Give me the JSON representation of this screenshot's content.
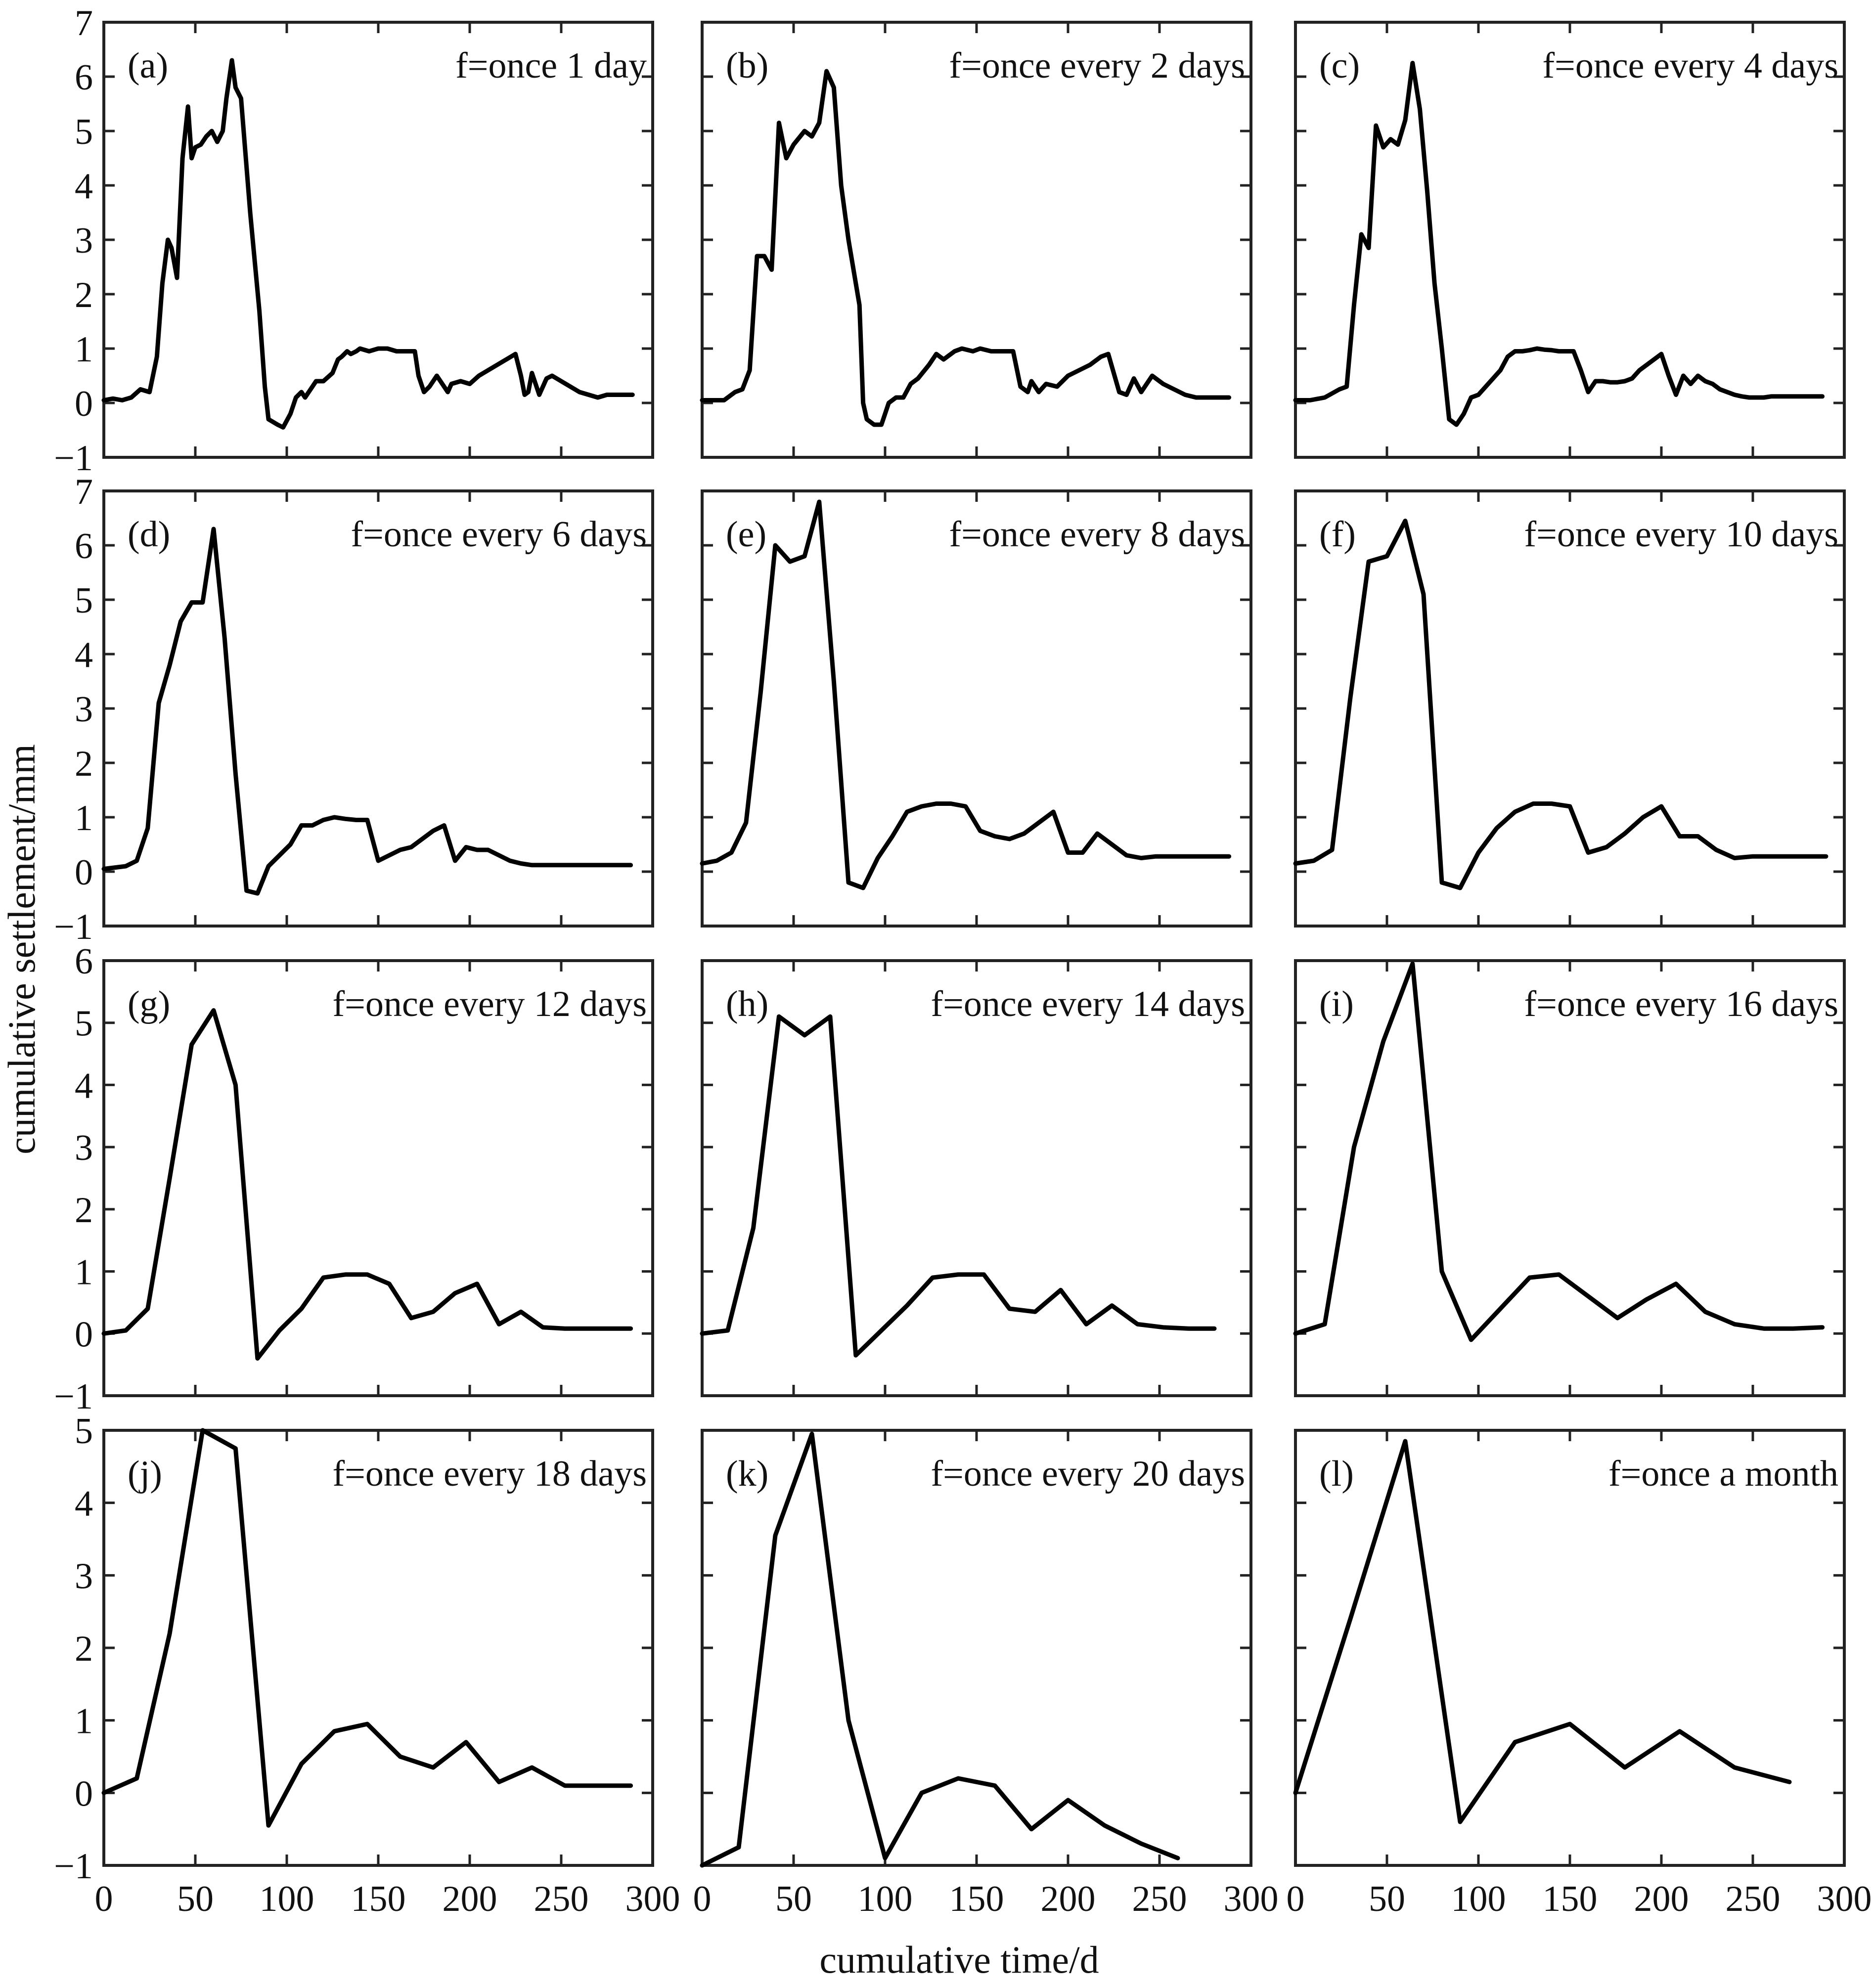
{
  "chart_data": {
    "type": "line",
    "xlabel": "cumulative time/d",
    "ylabel": "cumulative settlement/mm",
    "xlim": [
      0,
      300
    ],
    "x_ticks": [
      0,
      50,
      100,
      150,
      200,
      250,
      300
    ],
    "x_tick_labels": [
      "0",
      "50",
      "100",
      "150",
      "200",
      "250",
      "300"
    ],
    "line_color": "#000000",
    "grid": false,
    "panels": [
      {
        "label": "(a)",
        "title": "f=once 1 day",
        "ylim": [
          -1,
          7
        ],
        "y_ticks": [
          -1,
          0,
          1,
          2,
          3,
          4,
          5,
          6,
          7
        ],
        "y_tick_labels": [
          "−1",
          "0",
          "1",
          "2",
          "3",
          "4",
          "5",
          "6",
          "7"
        ],
        "x": [
          0,
          5,
          10,
          15,
          20,
          25,
          29,
          32,
          35,
          37,
          40,
          43,
          46,
          48,
          50,
          53,
          56,
          59,
          62,
          65,
          67,
          70,
          72,
          75,
          80,
          85,
          88,
          90,
          95,
          98,
          102,
          105,
          108,
          110,
          113,
          116,
          120,
          125,
          128,
          130,
          133,
          135,
          138,
          140,
          145,
          150,
          155,
          160,
          165,
          170,
          172,
          175,
          178,
          182,
          185,
          188,
          190,
          195,
          200,
          205,
          210,
          215,
          220,
          225,
          228,
          230,
          232,
          234,
          236,
          238,
          242,
          245,
          250,
          255,
          260,
          265,
          270,
          275,
          280,
          285,
          289
        ],
        "values": [
          0.05,
          0.08,
          0.05,
          0.1,
          0.25,
          0.2,
          0.85,
          2.2,
          3.0,
          2.85,
          2.3,
          4.5,
          5.45,
          4.5,
          4.7,
          4.75,
          4.9,
          5.0,
          4.8,
          5.0,
          5.6,
          6.3,
          5.8,
          5.6,
          3.5,
          1.7,
          0.3,
          -0.3,
          -0.4,
          -0.45,
          -0.2,
          0.1,
          0.2,
          0.1,
          0.25,
          0.4,
          0.4,
          0.55,
          0.8,
          0.85,
          0.95,
          0.9,
          0.95,
          1.0,
          0.95,
          1.0,
          1.0,
          0.95,
          0.95,
          0.95,
          0.5,
          0.2,
          0.3,
          0.5,
          0.35,
          0.2,
          0.35,
          0.4,
          0.35,
          0.5,
          0.6,
          0.7,
          0.8,
          0.9,
          0.5,
          0.15,
          0.2,
          0.55,
          0.35,
          0.15,
          0.45,
          0.5,
          0.4,
          0.3,
          0.2,
          0.15,
          0.1,
          0.15,
          0.15,
          0.15,
          0.15
        ]
      },
      {
        "label": "(b)",
        "title": "f=once every 2 days",
        "ylim": [
          -1,
          7
        ],
        "y_ticks": [
          -1,
          0,
          1,
          2,
          3,
          4,
          5,
          6,
          7
        ],
        "y_tick_labels": [
          "",
          "",
          "",
          "",
          "",
          "",
          "",
          "",
          ""
        ],
        "x": [
          0,
          6,
          12,
          18,
          22,
          26,
          30,
          34,
          38,
          42,
          46,
          50,
          56,
          60,
          64,
          68,
          72,
          76,
          80,
          86,
          88,
          90,
          94,
          98,
          102,
          106,
          110,
          114,
          118,
          124,
          128,
          132,
          138,
          142,
          148,
          152,
          158,
          164,
          170,
          174,
          178,
          180,
          184,
          188,
          194,
          200,
          206,
          212,
          218,
          222,
          228,
          232,
          236,
          240,
          246,
          252,
          258,
          264,
          270,
          276,
          282,
          288
        ],
        "values": [
          0.05,
          0.05,
          0.05,
          0.2,
          0.25,
          0.6,
          2.7,
          2.7,
          2.45,
          5.15,
          4.5,
          4.75,
          5.0,
          4.9,
          5.15,
          6.1,
          5.8,
          4.0,
          3.0,
          1.8,
          0.0,
          -0.3,
          -0.4,
          -0.4,
          0.0,
          0.1,
          0.1,
          0.35,
          0.45,
          0.7,
          0.9,
          0.8,
          0.95,
          1.0,
          0.95,
          1.0,
          0.95,
          0.95,
          0.95,
          0.3,
          0.2,
          0.4,
          0.2,
          0.35,
          0.3,
          0.5,
          0.6,
          0.7,
          0.85,
          0.9,
          0.2,
          0.15,
          0.45,
          0.2,
          0.5,
          0.35,
          0.25,
          0.15,
          0.1,
          0.1,
          0.1,
          0.1
        ]
      },
      {
        "label": "(c)",
        "title": "f=once every 4 days",
        "ylim": [
          -1,
          7
        ],
        "y_ticks": [
          -1,
          0,
          1,
          2,
          3,
          4,
          5,
          6,
          7
        ],
        "y_tick_labels": [
          "",
          "",
          "",
          "",
          "",
          "",
          "",
          "",
          ""
        ],
        "x": [
          0,
          8,
          16,
          24,
          28,
          32,
          36,
          40,
          44,
          48,
          52,
          56,
          60,
          64,
          68,
          72,
          76,
          80,
          84,
          88,
          92,
          96,
          100,
          104,
          108,
          112,
          116,
          120,
          124,
          128,
          132,
          136,
          140,
          144,
          148,
          152,
          156,
          160,
          164,
          168,
          172,
          176,
          180,
          184,
          188,
          192,
          196,
          200,
          204,
          208,
          212,
          216,
          220,
          224,
          228,
          232,
          236,
          240,
          244,
          248,
          252,
          256,
          260,
          264,
          268,
          272,
          276,
          280,
          284,
          288
        ],
        "values": [
          0.05,
          0.05,
          0.1,
          0.25,
          0.3,
          1.8,
          3.1,
          2.85,
          5.1,
          4.7,
          4.85,
          4.75,
          5.2,
          6.25,
          5.4,
          3.9,
          2.2,
          1.0,
          -0.3,
          -0.4,
          -0.2,
          0.1,
          0.15,
          0.3,
          0.45,
          0.6,
          0.85,
          0.95,
          0.95,
          0.97,
          1.0,
          0.98,
          0.97,
          0.95,
          0.95,
          0.95,
          0.6,
          0.2,
          0.4,
          0.4,
          0.38,
          0.38,
          0.4,
          0.45,
          0.6,
          0.7,
          0.8,
          0.9,
          0.5,
          0.15,
          0.5,
          0.35,
          0.5,
          0.4,
          0.35,
          0.25,
          0.2,
          0.15,
          0.12,
          0.1,
          0.1,
          0.1,
          0.12,
          0.12,
          0.12,
          0.12,
          0.12,
          0.12,
          0.12,
          0.12
        ]
      },
      {
        "label": "(d)",
        "title": "f=once every 6 days",
        "ylim": [
          -1,
          7
        ],
        "y_ticks": [
          -1,
          0,
          1,
          2,
          3,
          4,
          5,
          6,
          7
        ],
        "y_tick_labels": [
          "−1",
          "0",
          "1",
          "2",
          "3",
          "4",
          "5",
          "6",
          "7"
        ],
        "x": [
          0,
          12,
          18,
          24,
          30,
          36,
          42,
          48,
          54,
          60,
          66,
          72,
          78,
          84,
          90,
          96,
          102,
          108,
          114,
          120,
          126,
          132,
          138,
          144,
          150,
          156,
          162,
          168,
          174,
          180,
          186,
          192,
          198,
          204,
          210,
          216,
          222,
          228,
          234,
          240,
          246,
          252,
          258,
          264,
          270,
          276,
          282,
          288
        ],
        "values": [
          0.05,
          0.1,
          0.2,
          0.8,
          3.1,
          3.8,
          4.6,
          4.95,
          4.95,
          6.3,
          4.3,
          1.8,
          -0.35,
          -0.4,
          0.1,
          0.3,
          0.5,
          0.85,
          0.85,
          0.95,
          1.0,
          0.97,
          0.95,
          0.95,
          0.2,
          0.3,
          0.4,
          0.45,
          0.6,
          0.75,
          0.85,
          0.2,
          0.45,
          0.4,
          0.4,
          0.3,
          0.2,
          0.15,
          0.12,
          0.12,
          0.12,
          0.12,
          0.12,
          0.12,
          0.12,
          0.12,
          0.12,
          0.12
        ]
      },
      {
        "label": "(e)",
        "title": "f=once every 8 days",
        "ylim": [
          -1,
          7
        ],
        "y_ticks": [
          -1,
          0,
          1,
          2,
          3,
          4,
          5,
          6,
          7
        ],
        "y_tick_labels": [
          "",
          "",
          "",
          "",
          "",
          "",
          "",
          "",
          ""
        ],
        "x": [
          0,
          8,
          16,
          24,
          32,
          40,
          48,
          56,
          64,
          72,
          80,
          88,
          96,
          104,
          112,
          120,
          128,
          136,
          144,
          152,
          160,
          168,
          176,
          184,
          192,
          200,
          208,
          216,
          224,
          232,
          240,
          248,
          256,
          264,
          272,
          280,
          288
        ],
        "values": [
          0.15,
          0.2,
          0.35,
          0.9,
          3.3,
          6.0,
          5.7,
          5.8,
          6.8,
          3.5,
          -0.2,
          -0.3,
          0.25,
          0.65,
          1.1,
          1.2,
          1.25,
          1.25,
          1.2,
          0.75,
          0.65,
          0.6,
          0.7,
          0.9,
          1.1,
          0.35,
          0.35,
          0.7,
          0.5,
          0.3,
          0.25,
          0.28,
          0.28,
          0.28,
          0.28,
          0.28,
          0.28
        ]
      },
      {
        "label": "(f)",
        "title": "f=once every 10 days",
        "ylim": [
          -1,
          7
        ],
        "y_ticks": [
          -1,
          0,
          1,
          2,
          3,
          4,
          5,
          6,
          7
        ],
        "y_tick_labels": [
          "",
          "",
          "",
          "",
          "",
          "",
          "",
          "",
          ""
        ],
        "x": [
          0,
          10,
          20,
          30,
          40,
          50,
          60,
          70,
          80,
          90,
          100,
          110,
          120,
          130,
          140,
          150,
          160,
          170,
          180,
          190,
          200,
          210,
          220,
          230,
          240,
          250,
          260,
          270,
          280,
          290
        ],
        "values": [
          0.15,
          0.2,
          0.4,
          3.2,
          5.7,
          5.8,
          6.45,
          5.1,
          -0.2,
          -0.3,
          0.35,
          0.8,
          1.1,
          1.25,
          1.25,
          1.2,
          0.35,
          0.45,
          0.7,
          1.0,
          1.2,
          0.65,
          0.65,
          0.4,
          0.25,
          0.28,
          0.28,
          0.28,
          0.28,
          0.28
        ]
      },
      {
        "label": "(g)",
        "title": "f=once every 12 days",
        "ylim": [
          -1,
          6
        ],
        "y_ticks": [
          -1,
          0,
          1,
          2,
          3,
          4,
          5,
          6
        ],
        "y_tick_labels": [
          "−1",
          "0",
          "1",
          "2",
          "3",
          "4",
          "5",
          "6"
        ],
        "x": [
          0,
          12,
          24,
          36,
          48,
          60,
          72,
          84,
          96,
          108,
          120,
          132,
          144,
          156,
          168,
          180,
          192,
          204,
          216,
          228,
          240,
          252,
          264,
          276,
          288
        ],
        "values": [
          0.0,
          0.05,
          0.4,
          2.5,
          4.65,
          5.2,
          4.0,
          -0.4,
          0.05,
          0.4,
          0.9,
          0.95,
          0.95,
          0.8,
          0.25,
          0.35,
          0.65,
          0.8,
          0.15,
          0.35,
          0.1,
          0.08,
          0.08,
          0.08,
          0.08
        ]
      },
      {
        "label": "(h)",
        "title": "f=once every 14 days",
        "ylim": [
          -1,
          6
        ],
        "y_ticks": [
          -1,
          0,
          1,
          2,
          3,
          4,
          5,
          6
        ],
        "y_tick_labels": [
          "",
          "",
          "",
          "",
          "",
          "",
          "",
          ""
        ],
        "x": [
          0,
          14,
          28,
          42,
          56,
          70,
          84,
          98,
          112,
          126,
          140,
          154,
          168,
          182,
          196,
          210,
          224,
          238,
          252,
          266,
          280
        ],
        "values": [
          0.0,
          0.05,
          1.7,
          5.1,
          4.8,
          5.1,
          -0.35,
          0.05,
          0.45,
          0.9,
          0.95,
          0.95,
          0.4,
          0.35,
          0.7,
          0.15,
          0.45,
          0.15,
          0.1,
          0.08,
          0.08
        ]
      },
      {
        "label": "(i)",
        "title": "f=once every 16 days",
        "ylim": [
          -1,
          6
        ],
        "y_ticks": [
          -1,
          0,
          1,
          2,
          3,
          4,
          5,
          6
        ],
        "y_tick_labels": [
          "",
          "",
          "",
          "",
          "",
          "",
          "",
          ""
        ],
        "x": [
          0,
          16,
          32,
          48,
          64,
          80,
          96,
          112,
          128,
          144,
          160,
          176,
          192,
          208,
          224,
          240,
          256,
          272,
          288
        ],
        "values": [
          0.0,
          0.15,
          3.0,
          4.7,
          5.95,
          1.0,
          -0.1,
          0.4,
          0.9,
          0.95,
          0.6,
          0.25,
          0.55,
          0.8,
          0.35,
          0.15,
          0.08,
          0.08,
          0.1
        ]
      },
      {
        "label": "(j)",
        "title": "f=once every 18 days",
        "ylim": [
          -1,
          5
        ],
        "y_ticks": [
          -1,
          0,
          1,
          2,
          3,
          4,
          5
        ],
        "y_tick_labels": [
          "−1",
          "0",
          "1",
          "2",
          "3",
          "4",
          "5"
        ],
        "x": [
          0,
          18,
          36,
          54,
          72,
          90,
          108,
          126,
          144,
          162,
          180,
          198,
          216,
          234,
          252,
          270,
          288
        ],
        "values": [
          0.0,
          0.2,
          2.2,
          5.0,
          4.75,
          -0.45,
          0.4,
          0.85,
          0.95,
          0.5,
          0.35,
          0.7,
          0.15,
          0.35,
          0.1,
          0.1,
          0.1
        ]
      },
      {
        "label": "(k)",
        "title": "f=once every 20 days",
        "ylim": [
          -1,
          5
        ],
        "y_ticks": [
          -1,
          0,
          1,
          2,
          3,
          4,
          5
        ],
        "y_tick_labels": [
          "",
          "",
          "",
          "",
          "",
          "",
          ""
        ],
        "x": [
          0,
          20,
          40,
          60,
          80,
          100,
          120,
          140,
          160,
          180,
          200,
          220,
          240,
          260
        ],
        "values": [
          -1.0,
          -0.75,
          3.55,
          4.95,
          1.0,
          -0.9,
          0.0,
          0.2,
          0.1,
          -0.5,
          -0.1,
          -0.45,
          -0.7,
          -0.9
        ]
      },
      {
        "label": "(l)",
        "title": "f=once a month",
        "ylim": [
          -1,
          5
        ],
        "y_ticks": [
          -1,
          0,
          1,
          2,
          3,
          4,
          5
        ],
        "y_tick_labels": [
          "",
          "",
          "",
          "",
          "",
          "",
          ""
        ],
        "x": [
          0,
          30,
          60,
          90,
          120,
          150,
          180,
          210,
          240,
          270
        ],
        "values": [
          0.0,
          2.4,
          4.85,
          -0.4,
          0.7,
          0.95,
          0.35,
          0.85,
          0.35,
          0.15
        ]
      }
    ]
  }
}
